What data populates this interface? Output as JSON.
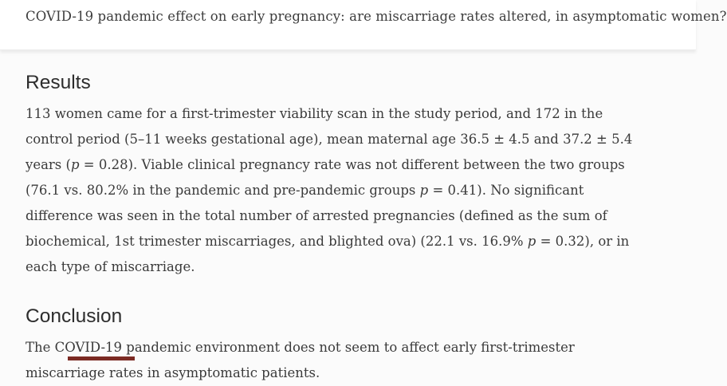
{
  "header": {
    "title": "COVID-19 pandemic effect on early pregnancy: are miscarriage rates altered, in asymptomatic women?"
  },
  "sections": [
    {
      "heading": "Results",
      "segments": [
        {
          "text": "113 women came for a first-trimester viability scan in the study period, and 172 in the control period (5–11 weeks gestational age), mean maternal age 36.5 ± 4.5 and 37.2 ± 5.4 years ("
        },
        {
          "text": "p",
          "italic": true
        },
        {
          "text": " = 0.28). Viable clinical pregnancy rate was not different between the two groups (76.1 vs. 80.2% in the pandemic and pre-pandemic groups "
        },
        {
          "text": "p",
          "italic": true
        },
        {
          "text": " = 0.41). No significant difference was seen in the total number of arrested pregnancies (defined as the sum of biochemical, 1st trimester miscarriages, and blighted ova) (22.1 vs. 16.9% "
        },
        {
          "text": "p",
          "italic": true
        },
        {
          "text": " = 0.32), or in each type of miscarriage."
        }
      ]
    },
    {
      "heading": "Conclusion",
      "segments": [
        {
          "text": "The COVID-19 pandemic environment does not seem to affect early first-trimester miscarriage rates in asymptomatic patients."
        }
      ]
    }
  ],
  "colors": {
    "page_bg": "#fbfbfb",
    "header_bg": "#ffffff",
    "body_text": "#3a3a3a",
    "heading_text": "#2d2d2d",
    "title_text": "#3d3d3d",
    "bottom_bar": "#7b2a23"
  }
}
